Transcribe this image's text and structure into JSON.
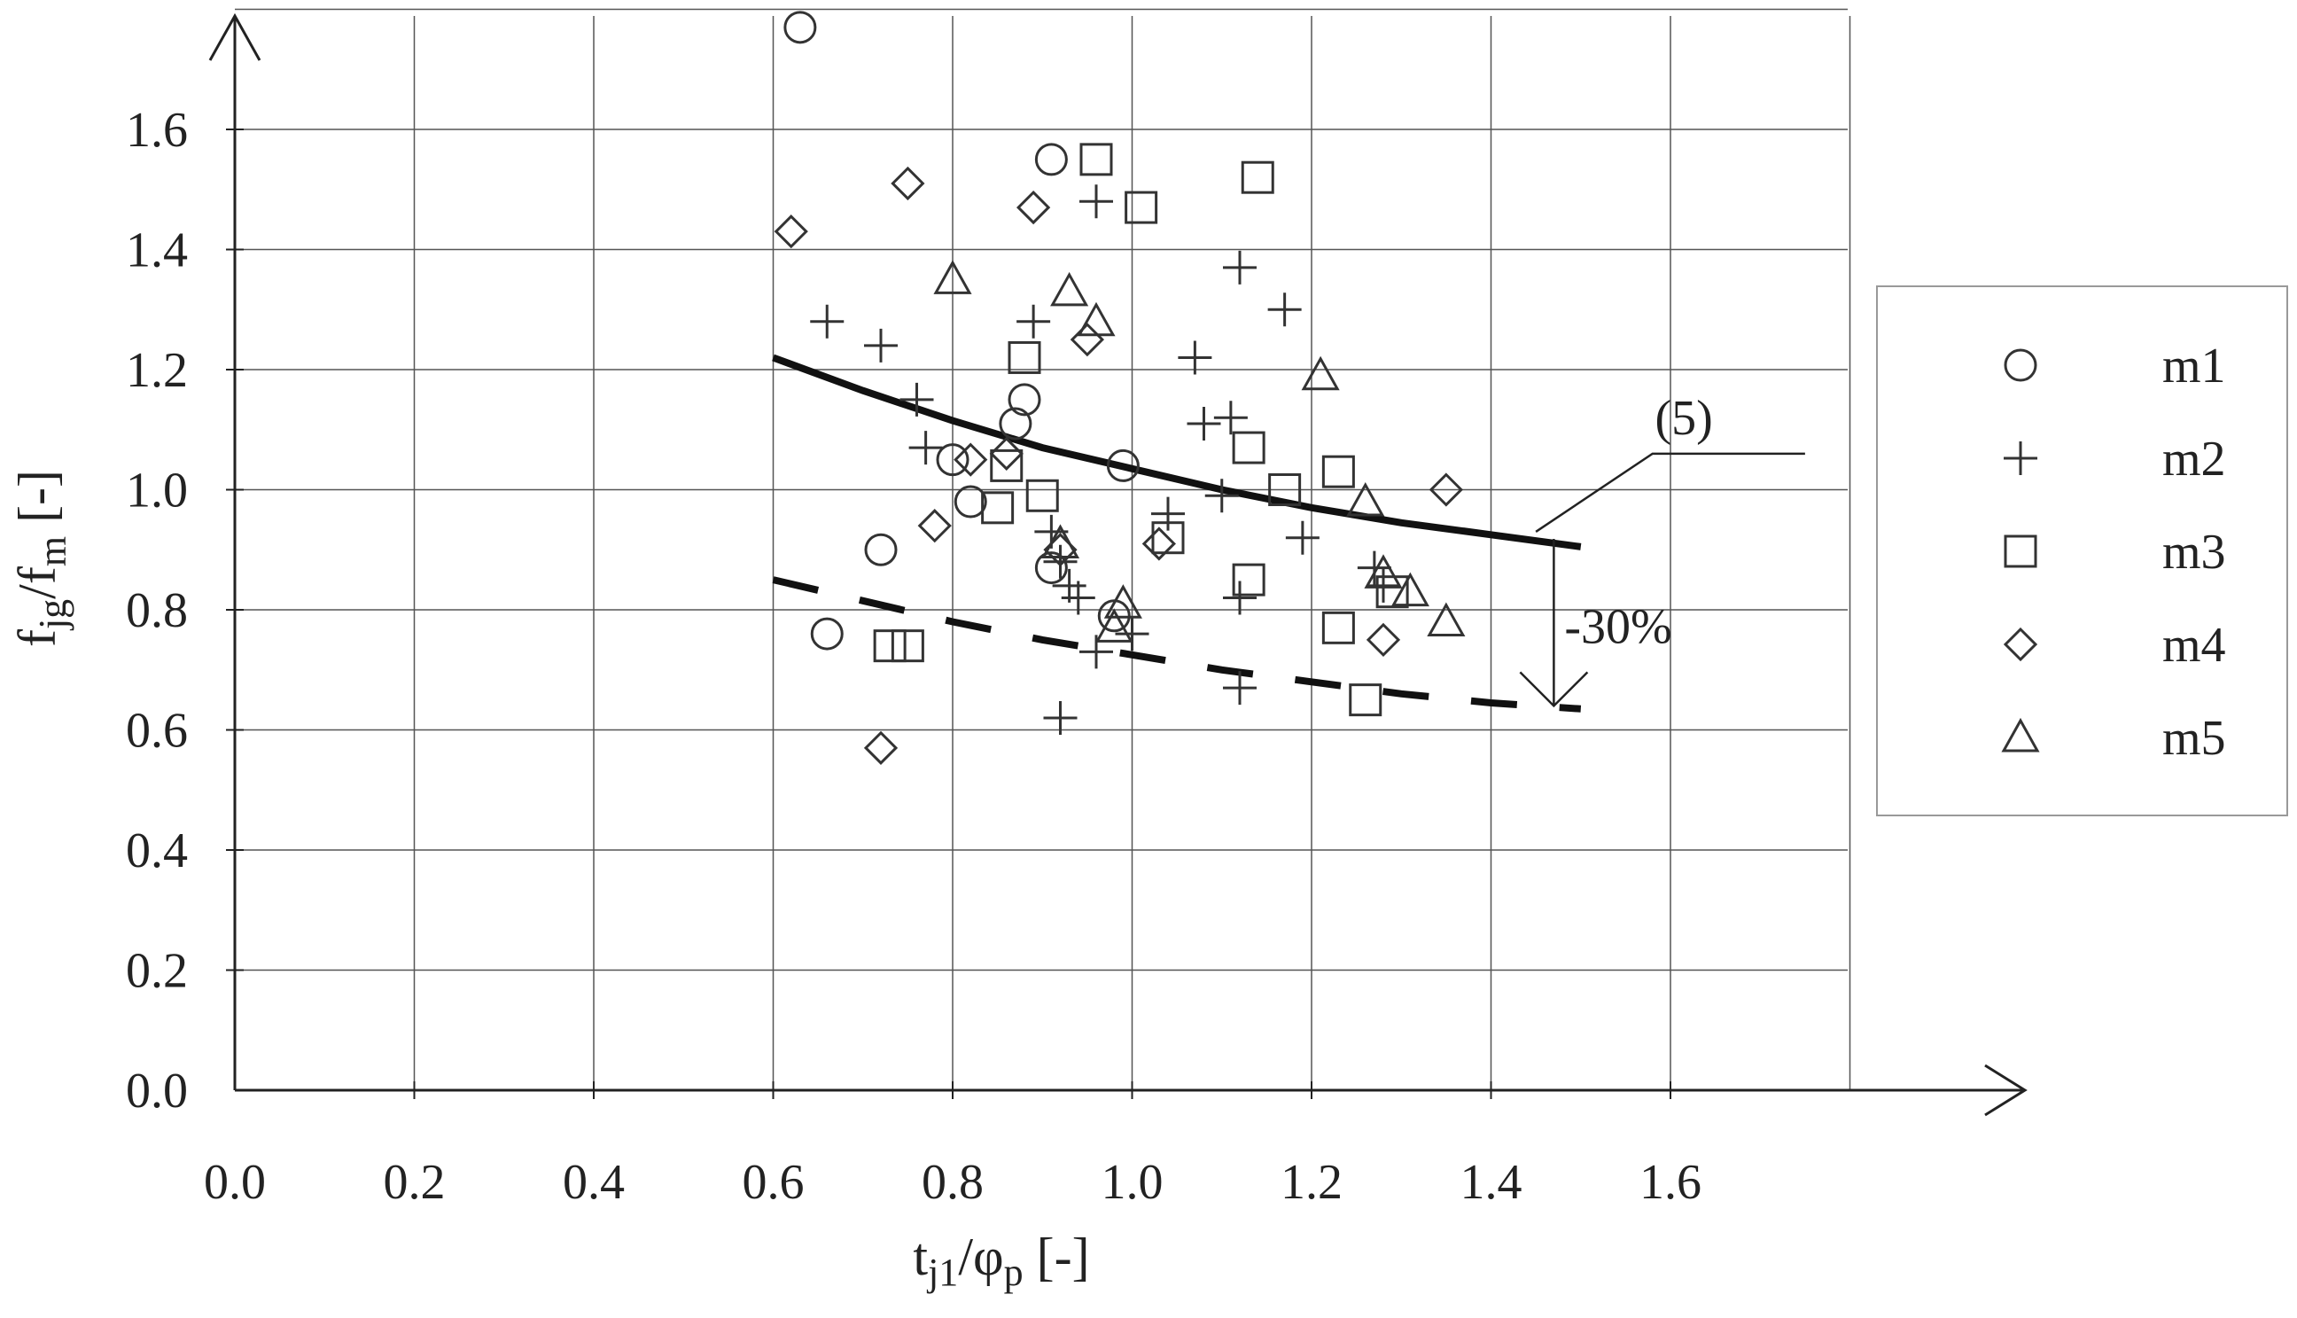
{
  "chart_data": {
    "type": "scatter",
    "xlabel": {
      "base": "t",
      "sub1": "j1",
      "mid": "/φ",
      "sub2": "p",
      "tail": " [-]"
    },
    "ylabel": {
      "base": "f",
      "sub1": "jg",
      "mid": "/f",
      "sub2": "m",
      "tail": " [-]"
    },
    "xlim": [
      0.0,
      1.8
    ],
    "ylim": [
      0.0,
      1.8
    ],
    "xticks": [
      "0.0",
      "0.2",
      "0.4",
      "0.6",
      "0.8",
      "1.0",
      "1.2",
      "1.4",
      "1.6"
    ],
    "yticks": [
      "0.0",
      "0.2",
      "0.4",
      "0.6",
      "0.8",
      "1.0",
      "1.2",
      "1.4",
      "1.6"
    ],
    "grid": true,
    "legend_position": "right",
    "series": [
      {
        "name": "m1",
        "marker": "circle",
        "points": [
          [
            0.63,
            1.77
          ],
          [
            0.91,
            1.55
          ],
          [
            0.8,
            1.05
          ],
          [
            0.88,
            1.15
          ],
          [
            0.87,
            1.11
          ],
          [
            0.82,
            0.98
          ],
          [
            0.72,
            0.9
          ],
          [
            0.66,
            0.76
          ],
          [
            0.91,
            0.87
          ],
          [
            0.98,
            0.79
          ],
          [
            0.99,
            1.04
          ]
        ]
      },
      {
        "name": "m2",
        "marker": "plus",
        "points": [
          [
            0.96,
            1.48
          ],
          [
            0.66,
            1.28
          ],
          [
            0.72,
            1.24
          ],
          [
            0.76,
            1.15
          ],
          [
            0.77,
            1.07
          ],
          [
            0.89,
            1.28
          ],
          [
            0.91,
            0.93
          ],
          [
            0.92,
            0.88
          ],
          [
            0.93,
            0.84
          ],
          [
            0.94,
            0.82
          ],
          [
            0.96,
            0.73
          ],
          [
            0.92,
            0.62
          ],
          [
            1.0,
            0.76
          ],
          [
            1.04,
            0.96
          ],
          [
            1.07,
            1.22
          ],
          [
            1.08,
            1.11
          ],
          [
            1.11,
            1.12
          ],
          [
            1.12,
            1.37
          ],
          [
            1.17,
            1.3
          ],
          [
            1.1,
            0.99
          ],
          [
            1.19,
            0.92
          ],
          [
            1.12,
            0.82
          ],
          [
            1.12,
            0.67
          ],
          [
            1.27,
            0.87
          ],
          [
            1.28,
            0.84
          ]
        ]
      },
      {
        "name": "m3",
        "marker": "square",
        "points": [
          [
            0.96,
            1.55
          ],
          [
            1.01,
            1.47
          ],
          [
            1.14,
            1.52
          ],
          [
            0.88,
            1.22
          ],
          [
            0.86,
            1.04
          ],
          [
            0.85,
            0.97
          ],
          [
            0.9,
            0.99
          ],
          [
            1.04,
            0.92
          ],
          [
            1.13,
            1.07
          ],
          [
            1.17,
            1.0
          ],
          [
            1.23,
            1.03
          ],
          [
            1.13,
            0.85
          ],
          [
            1.23,
            0.77
          ],
          [
            1.29,
            0.83
          ],
          [
            1.26,
            0.65
          ],
          [
            0.73,
            0.74
          ],
          [
            0.75,
            0.74
          ]
        ]
      },
      {
        "name": "m4",
        "marker": "diamond",
        "points": [
          [
            0.62,
            1.43
          ],
          [
            0.75,
            1.51
          ],
          [
            0.89,
            1.47
          ],
          [
            0.95,
            1.25
          ],
          [
            0.86,
            1.06
          ],
          [
            0.82,
            1.05
          ],
          [
            0.78,
            0.94
          ],
          [
            0.92,
            0.9
          ],
          [
            1.03,
            0.91
          ],
          [
            1.35,
            1.0
          ],
          [
            1.28,
            0.75
          ],
          [
            0.72,
            0.57
          ]
        ]
      },
      {
        "name": "m5",
        "marker": "triangle",
        "points": [
          [
            0.8,
            1.35
          ],
          [
            0.93,
            1.33
          ],
          [
            0.96,
            1.28
          ],
          [
            1.21,
            1.19
          ],
          [
            1.26,
            0.98
          ],
          [
            0.99,
            0.81
          ],
          [
            0.98,
            0.77
          ],
          [
            1.28,
            0.86
          ],
          [
            1.31,
            0.83
          ],
          [
            1.35,
            0.78
          ],
          [
            0.92,
            0.91
          ]
        ]
      }
    ],
    "curves": [
      {
        "label": "(5)",
        "style": "solid",
        "points": [
          [
            0.6,
            1.22
          ],
          [
            0.7,
            1.165
          ],
          [
            0.8,
            1.115
          ],
          [
            0.9,
            1.07
          ],
          [
            1.0,
            1.035
          ],
          [
            1.1,
            1.0
          ],
          [
            1.2,
            0.97
          ],
          [
            1.3,
            0.945
          ],
          [
            1.4,
            0.925
          ],
          [
            1.5,
            0.905
          ]
        ]
      },
      {
        "label": "",
        "style": "dashed",
        "points": [
          [
            0.6,
            0.85
          ],
          [
            0.7,
            0.815
          ],
          [
            0.8,
            0.78
          ],
          [
            0.9,
            0.75
          ],
          [
            1.0,
            0.725
          ],
          [
            1.1,
            0.7
          ],
          [
            1.2,
            0.68
          ],
          [
            1.3,
            0.66
          ],
          [
            1.4,
            0.645
          ],
          [
            1.5,
            0.635
          ]
        ]
      }
    ],
    "annotations": {
      "curve_label": "(5)",
      "reduction": "-30%"
    },
    "colors": {
      "ink": "#222222",
      "grid": "#555555"
    }
  }
}
